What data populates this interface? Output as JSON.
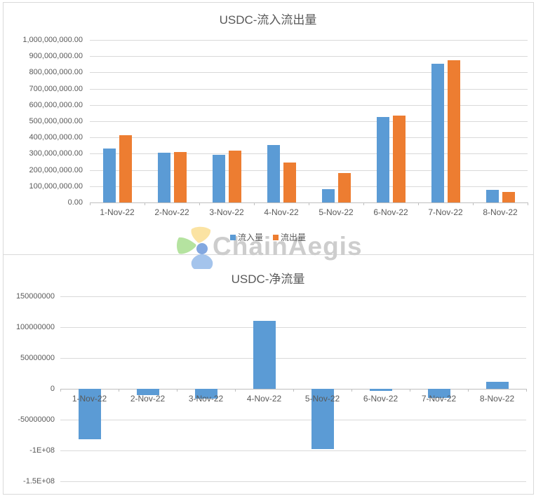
{
  "watermark": {
    "text": "ChainAegis"
  },
  "colors": {
    "inflow_blue": "#5B9BD5",
    "outflow_orange": "#ED7D31",
    "gridline": "#D9D9D9",
    "axis": "#BFBFBF",
    "label_text": "#595959",
    "watermark_gray": "#CDCDCD"
  },
  "chart_data": [
    {
      "type": "bar",
      "title": "USDC-流入流出量",
      "categories": [
        "1-Nov-22",
        "2-Nov-22",
        "3-Nov-22",
        "4-Nov-22",
        "5-Nov-22",
        "6-Nov-22",
        "7-Nov-22",
        "8-Nov-22"
      ],
      "series": [
        {
          "name": "流入量",
          "color": "#5B9BD5",
          "values": [
            332000000,
            305000000,
            295000000,
            354000000,
            83000000,
            527000000,
            855000000,
            79000000
          ]
        },
        {
          "name": "流出量",
          "color": "#ED7D31",
          "values": [
            415000000,
            312000000,
            317000000,
            244000000,
            181000000,
            533000000,
            875000000,
            66000000
          ]
        }
      ],
      "ylim": [
        0,
        1000000000
      ],
      "yticks": [
        {
          "label": "1,000,000,000.00",
          "value": 1000000000
        },
        {
          "label": "900,000,000.00",
          "value": 900000000
        },
        {
          "label": "800,000,000.00",
          "value": 800000000
        },
        {
          "label": "700,000,000.00",
          "value": 700000000
        },
        {
          "label": "600,000,000.00",
          "value": 600000000
        },
        {
          "label": "500,000,000.00",
          "value": 500000000
        },
        {
          "label": "400,000,000.00",
          "value": 400000000
        },
        {
          "label": "300,000,000.00",
          "value": 300000000
        },
        {
          "label": "200,000,000.00",
          "value": 200000000
        },
        {
          "label": "100,000,000.00",
          "value": 100000000
        },
        {
          "label": "0.00",
          "value": 0
        }
      ],
      "legend_position": "bottom",
      "grid": true
    },
    {
      "type": "bar",
      "title": "USDC-净流量",
      "categories": [
        "1-Nov-22",
        "2-Nov-22",
        "3-Nov-22",
        "4-Nov-22",
        "5-Nov-22",
        "6-Nov-22",
        "7-Nov-22",
        "8-Nov-22"
      ],
      "series": [
        {
          "color": "#5B9BD5",
          "values": [
            -82000000,
            -10000000,
            -16000000,
            110000000,
            -98000000,
            -3000000,
            -15000000,
            11000000
          ]
        }
      ],
      "ylim": [
        -150000000,
        150000000
      ],
      "yticks": [
        {
          "label": "150000000",
          "value": 150000000
        },
        {
          "label": "100000000",
          "value": 100000000
        },
        {
          "label": "50000000",
          "value": 50000000
        },
        {
          "label": "0",
          "value": 0
        },
        {
          "label": "-50000000",
          "value": -50000000
        },
        {
          "label": "-1E+08",
          "value": -100000000
        },
        {
          "label": "-1.5E+08",
          "value": -150000000
        }
      ],
      "legend_position": "none",
      "grid": true
    }
  ]
}
